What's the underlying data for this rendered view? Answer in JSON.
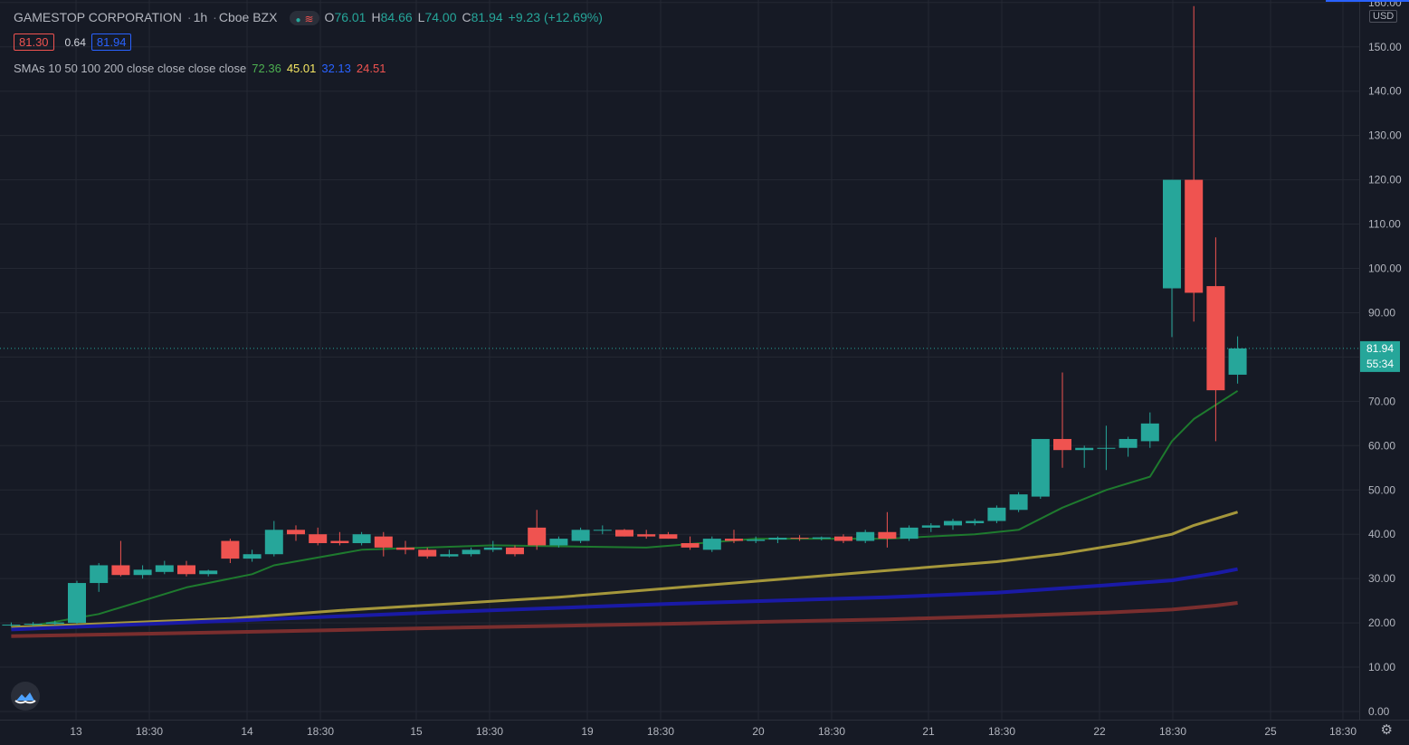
{
  "header": {
    "symbol": "GAMESTOP CORPORATION",
    "interval": "1h",
    "exchange": "Cboe BZX",
    "ohlc": {
      "o_label": "O",
      "o": "76.01",
      "h_label": "H",
      "h": "84.66",
      "l_label": "L",
      "l": "74.00",
      "c_label": "C",
      "c": "81.94",
      "change": "+9.23 (+12.69%)"
    },
    "sell_price": "81.30",
    "spread": "0.64",
    "buy_price": "81.94",
    "sma_label": "SMAs 10 50 100 200 close close close close",
    "sma_values": [
      {
        "value": "72.36",
        "color": "#4caf50"
      },
      {
        "value": "45.01",
        "color": "#f5e663"
      },
      {
        "value": "32.13",
        "color": "#2962ff"
      },
      {
        "value": "24.51",
        "color": "#ef5350"
      }
    ]
  },
  "price_axis": {
    "currency": "USD",
    "ticks": [
      "160.00",
      "150.00",
      "140.00",
      "130.00",
      "120.00",
      "110.00",
      "100.00",
      "90.00",
      "80.00",
      "70.00",
      "60.00",
      "50.00",
      "40.00",
      "30.00",
      "20.00",
      "10.00",
      "0.00"
    ],
    "last_price": "81.94",
    "countdown": "55:34",
    "up_color": "#26a69a",
    "down_color": "#ef5350"
  },
  "time_axis": {
    "labels": [
      "13",
      "18:30",
      "14",
      "18:30",
      "15",
      "18:30",
      "19",
      "18:30",
      "20",
      "18:30",
      "21",
      "18:30",
      "22",
      "18:30",
      "25",
      "18:30"
    ]
  },
  "chart_data": {
    "type": "candlestick",
    "ylim": [
      0,
      160
    ],
    "candles": [
      {
        "o": 19.5,
        "h": 20.1,
        "l": 19.2,
        "c": 19.6
      },
      {
        "o": 19.6,
        "h": 20.2,
        "l": 19.3,
        "c": 19.8
      },
      {
        "o": 19.8,
        "h": 20.5,
        "l": 19.5,
        "c": 20.1
      },
      {
        "o": 20.0,
        "h": 29.5,
        "l": 19.8,
        "c": 29.0
      },
      {
        "o": 29.0,
        "h": 33.5,
        "l": 27.0,
        "c": 33.0
      },
      {
        "o": 33.0,
        "h": 38.5,
        "l": 30.5,
        "c": 30.8
      },
      {
        "o": 30.8,
        "h": 33.0,
        "l": 30.0,
        "c": 32.0
      },
      {
        "o": 31.5,
        "h": 34.0,
        "l": 31.0,
        "c": 33.0
      },
      {
        "o": 33.0,
        "h": 34.0,
        "l": 30.5,
        "c": 31.0
      },
      {
        "o": 31.0,
        "h": 32.0,
        "l": 30.5,
        "c": 31.8
      },
      {
        "o": 38.5,
        "h": 39.0,
        "l": 33.5,
        "c": 34.5
      },
      {
        "o": 34.5,
        "h": 36.5,
        "l": 33.8,
        "c": 35.5
      },
      {
        "o": 35.5,
        "h": 43.0,
        "l": 35.0,
        "c": 41.0
      },
      {
        "o": 41.0,
        "h": 42.0,
        "l": 38.5,
        "c": 40.0
      },
      {
        "o": 40.0,
        "h": 41.5,
        "l": 37.5,
        "c": 38.0
      },
      {
        "o": 38.5,
        "h": 40.5,
        "l": 37.5,
        "c": 38.0
      },
      {
        "o": 38.0,
        "h": 40.5,
        "l": 37.5,
        "c": 40.0
      },
      {
        "o": 39.5,
        "h": 40.5,
        "l": 35.0,
        "c": 37.0
      },
      {
        "o": 37.0,
        "h": 38.5,
        "l": 35.5,
        "c": 36.5
      },
      {
        "o": 36.5,
        "h": 37.0,
        "l": 34.5,
        "c": 35.0
      },
      {
        "o": 35.0,
        "h": 36.5,
        "l": 34.8,
        "c": 35.5
      },
      {
        "o": 35.5,
        "h": 37.0,
        "l": 35.0,
        "c": 36.5
      },
      {
        "o": 36.5,
        "h": 38.5,
        "l": 36.0,
        "c": 37.0
      },
      {
        "o": 37.0,
        "h": 37.5,
        "l": 35.0,
        "c": 35.5
      },
      {
        "o": 41.5,
        "h": 45.5,
        "l": 36.5,
        "c": 37.5
      },
      {
        "o": 37.5,
        "h": 39.5,
        "l": 37.0,
        "c": 39.0
      },
      {
        "o": 38.5,
        "h": 41.5,
        "l": 38.0,
        "c": 41.0
      },
      {
        "o": 40.8,
        "h": 42.0,
        "l": 40.0,
        "c": 41.0
      },
      {
        "o": 41.0,
        "h": 41.2,
        "l": 39.5,
        "c": 39.5
      },
      {
        "o": 40.0,
        "h": 41.0,
        "l": 39.0,
        "c": 39.5
      },
      {
        "o": 40.0,
        "h": 40.5,
        "l": 39.0,
        "c": 39.0
      },
      {
        "o": 38.0,
        "h": 39.5,
        "l": 36.5,
        "c": 37.0
      },
      {
        "o": 36.5,
        "h": 39.5,
        "l": 36.0,
        "c": 39.0
      },
      {
        "o": 39.0,
        "h": 41.0,
        "l": 38.0,
        "c": 38.5
      },
      {
        "o": 38.5,
        "h": 39.5,
        "l": 38.0,
        "c": 38.8
      },
      {
        "o": 38.8,
        "h": 39.5,
        "l": 38.0,
        "c": 39.2
      },
      {
        "o": 39.2,
        "h": 39.8,
        "l": 38.5,
        "c": 39.0
      },
      {
        "o": 39.0,
        "h": 39.5,
        "l": 38.6,
        "c": 39.3
      },
      {
        "o": 39.5,
        "h": 40.0,
        "l": 38.0,
        "c": 38.5
      },
      {
        "o": 38.5,
        "h": 41.0,
        "l": 38.0,
        "c": 40.5
      },
      {
        "o": 40.5,
        "h": 45.0,
        "l": 37.0,
        "c": 39.0
      },
      {
        "o": 39.0,
        "h": 42.0,
        "l": 38.5,
        "c": 41.5
      },
      {
        "o": 41.5,
        "h": 42.5,
        "l": 40.5,
        "c": 42.0
      },
      {
        "o": 42.0,
        "h": 43.5,
        "l": 41.0,
        "c": 43.0
      },
      {
        "o": 42.5,
        "h": 43.5,
        "l": 42.0,
        "c": 43.0
      },
      {
        "o": 43.0,
        "h": 46.5,
        "l": 42.5,
        "c": 46.0
      },
      {
        "o": 45.5,
        "h": 49.5,
        "l": 45.0,
        "c": 49.0
      },
      {
        "o": 48.5,
        "h": 61.5,
        "l": 48.0,
        "c": 61.5
      },
      {
        "o": 61.5,
        "h": 76.5,
        "l": 55.0,
        "c": 59.0
      },
      {
        "o": 59.0,
        "h": 60.0,
        "l": 55.0,
        "c": 59.5
      },
      {
        "o": 59.5,
        "h": 64.5,
        "l": 54.5,
        "c": 59.5
      },
      {
        "o": 59.5,
        "h": 62.0,
        "l": 57.5,
        "c": 61.5
      },
      {
        "o": 61.0,
        "h": 67.5,
        "l": 59.5,
        "c": 65.0
      },
      {
        "o": 95.5,
        "h": 120.0,
        "l": 84.5,
        "c": 120.0
      },
      {
        "o": 120.0,
        "h": 159.2,
        "l": 88.0,
        "c": 94.5
      },
      {
        "o": 96.0,
        "h": 107.0,
        "l": 61.0,
        "c": 72.5
      },
      {
        "o": 76.01,
        "h": 84.66,
        "l": 74.0,
        "c": 81.94
      }
    ],
    "sma": [
      {
        "name": "SMA 10",
        "color": "#1e7a2e",
        "width": 2,
        "x": [
          0,
          4,
          8,
          11,
          12,
          16,
          22,
          29,
          34,
          40,
          44,
          46,
          48,
          50,
          52,
          53,
          54,
          56
        ],
        "y": [
          18.5,
          22,
          28,
          31,
          33,
          36.5,
          37.5,
          37,
          39,
          39,
          40,
          41,
          46,
          50,
          53,
          61,
          66,
          72.36
        ]
      },
      {
        "name": "SMA 50",
        "color": "#a5973b",
        "width": 3,
        "x": [
          0,
          5,
          10,
          15,
          20,
          25,
          30,
          35,
          40,
          45,
          48,
          51,
          53,
          54,
          56
        ],
        "y": [
          19,
          20,
          21,
          22.8,
          24.3,
          25.8,
          27.8,
          29.8,
          31.8,
          33.8,
          35.6,
          38,
          40,
          42,
          45.01
        ]
      },
      {
        "name": "SMA 100",
        "color": "#1a1aa6",
        "width": 4,
        "x": [
          0,
          10,
          20,
          30,
          40,
          45,
          50,
          53,
          55,
          56
        ],
        "y": [
          18.5,
          20.5,
          22.5,
          24.3,
          25.8,
          26.8,
          28.5,
          29.6,
          31.2,
          32.13
        ]
      },
      {
        "name": "SMA 200",
        "color": "#7a2e2e",
        "width": 4,
        "x": [
          0,
          10,
          20,
          30,
          40,
          45,
          50,
          53,
          55,
          56
        ],
        "y": [
          17,
          17.9,
          18.9,
          19.8,
          20.8,
          21.5,
          22.3,
          23,
          23.9,
          24.51
        ]
      }
    ]
  }
}
